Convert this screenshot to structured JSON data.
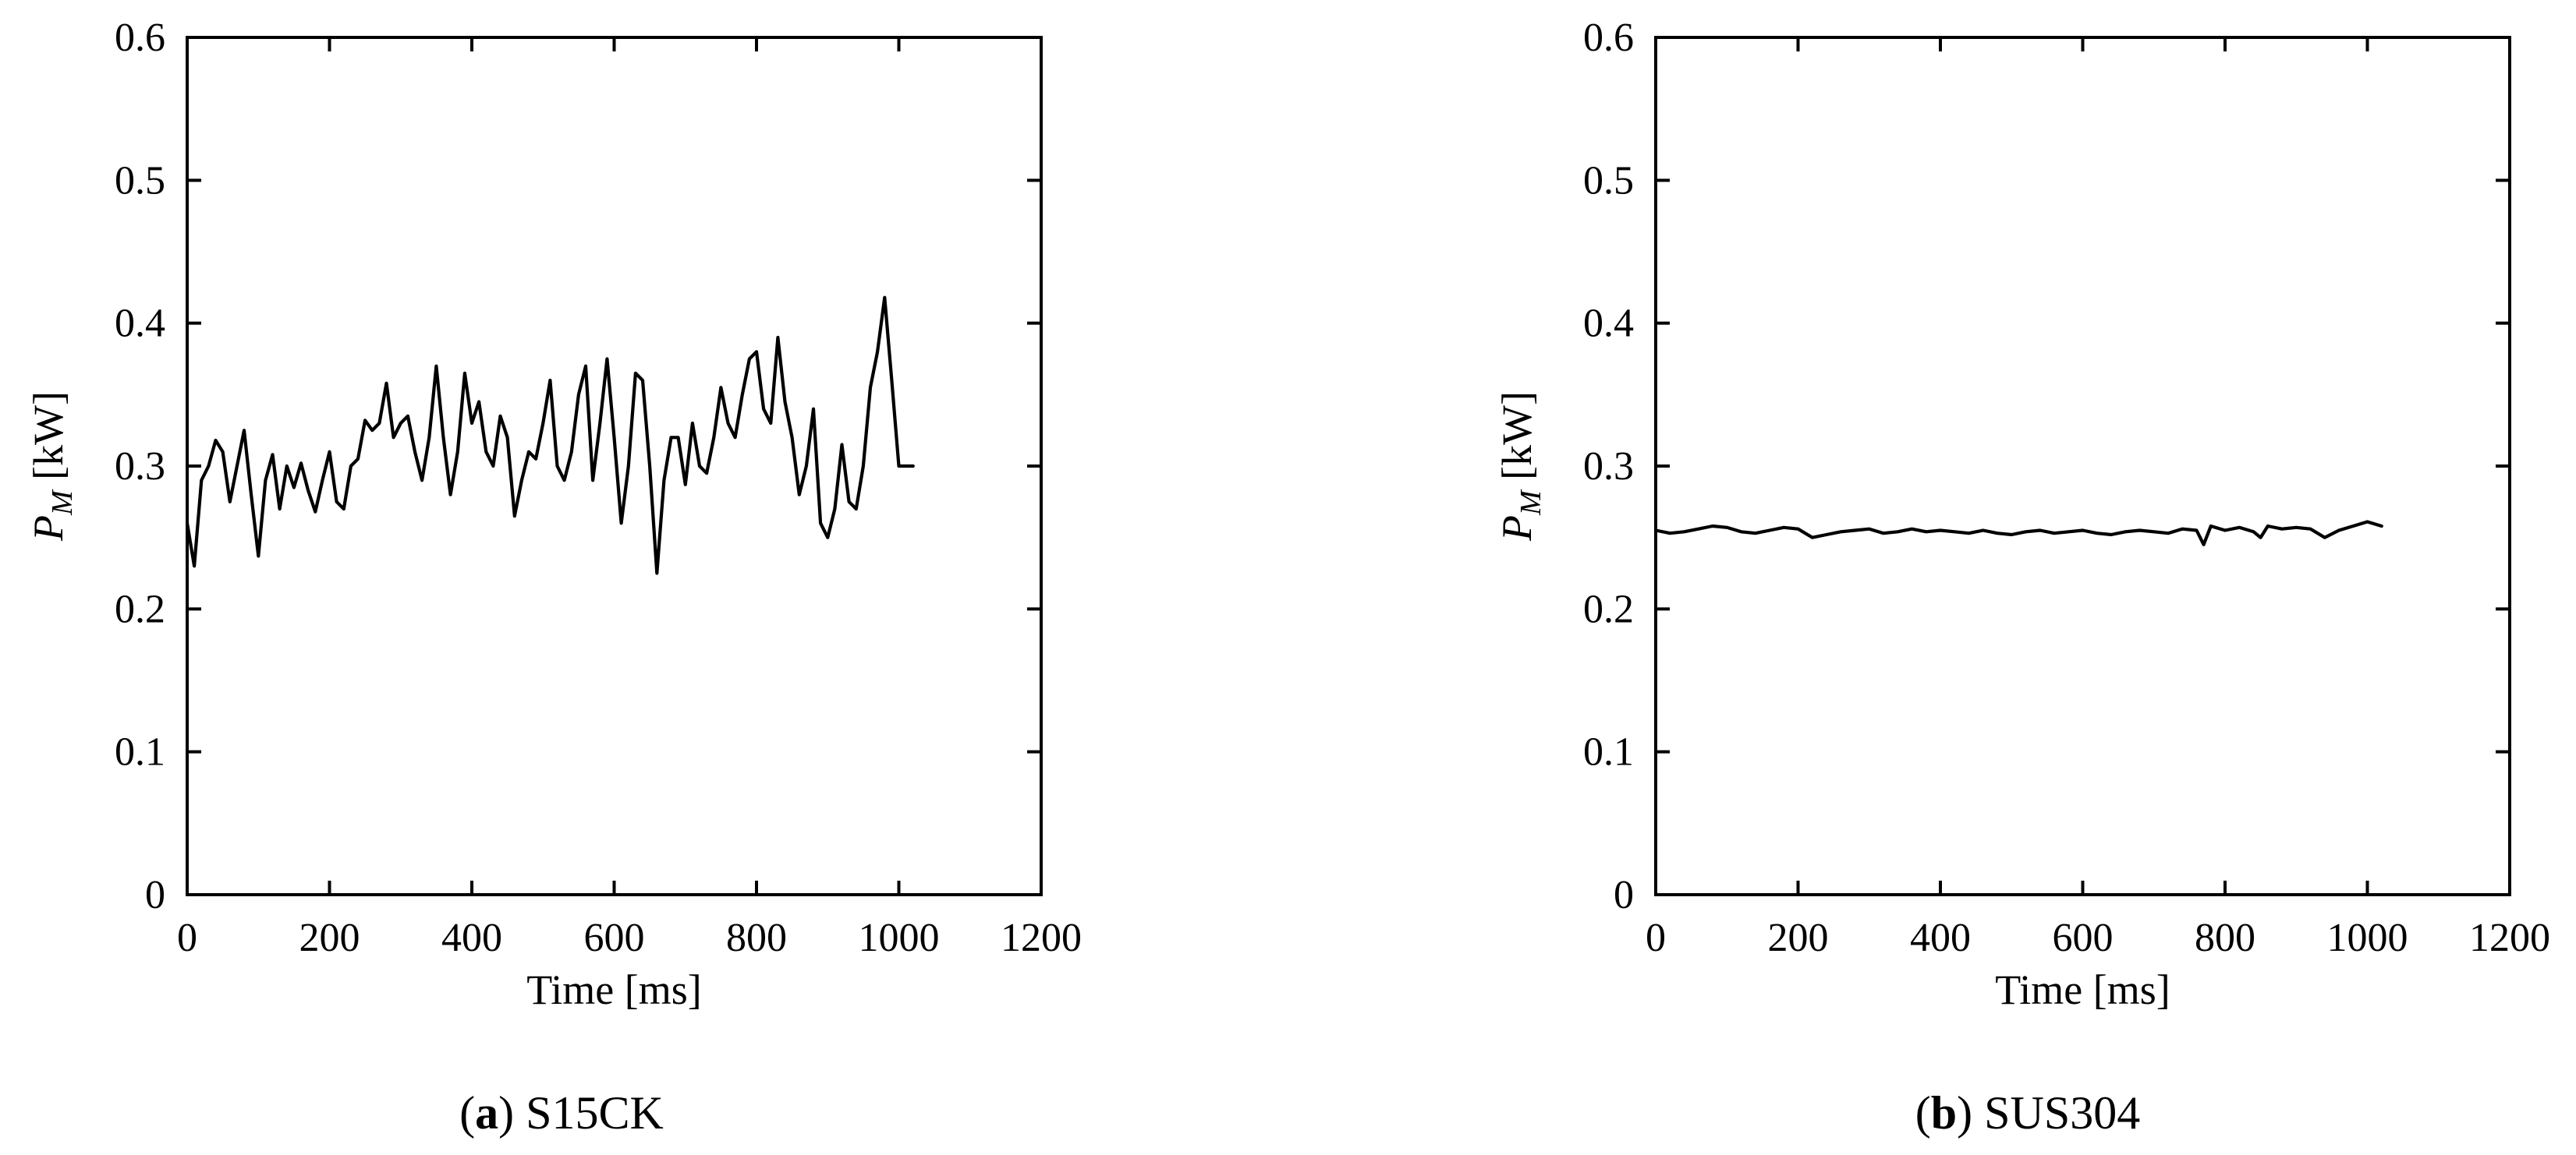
{
  "chart_data": [
    {
      "type": "line",
      "panel_letter": "a",
      "panel_title": "S15CK",
      "xlabel": "Time [ms]",
      "ylabel_symbol": "P",
      "ylabel_subscript": "M",
      "ylabel_unit": "[kW]",
      "xlim": [
        0,
        1200
      ],
      "ylim": [
        0,
        0.6
      ],
      "xticks": [
        0,
        200,
        400,
        600,
        800,
        1000,
        1200
      ],
      "yticks": [
        0,
        0.1,
        0.2,
        0.3,
        0.4,
        0.5,
        0.6
      ],
      "grid": false,
      "series": [
        {
          "x": [
            0,
            10,
            20,
            30,
            40,
            50,
            60,
            70,
            80,
            90,
            100,
            110,
            120,
            130,
            140,
            150,
            160,
            170,
            180,
            190,
            200,
            210,
            220,
            230,
            240,
            250,
            260,
            270,
            280,
            290,
            300,
            310,
            320,
            330,
            340,
            350,
            360,
            370,
            380,
            390,
            400,
            410,
            420,
            430,
            440,
            450,
            460,
            470,
            480,
            490,
            500,
            510,
            520,
            530,
            540,
            550,
            560,
            570,
            580,
            590,
            600,
            610,
            620,
            630,
            640,
            650,
            660,
            670,
            680,
            690,
            700,
            710,
            720,
            730,
            740,
            750,
            760,
            770,
            780,
            790,
            800,
            810,
            820,
            830,
            840,
            850,
            860,
            870,
            880,
            890,
            900,
            910,
            920,
            930,
            940,
            950,
            960,
            970,
            980,
            990,
            1000,
            1010,
            1020
          ],
          "y": [
            0.26,
            0.23,
            0.29,
            0.3,
            0.318,
            0.31,
            0.275,
            0.3,
            0.325,
            0.28,
            0.237,
            0.29,
            0.308,
            0.27,
            0.3,
            0.285,
            0.302,
            0.283,
            0.268,
            0.29,
            0.31,
            0.275,
            0.27,
            0.3,
            0.305,
            0.332,
            0.325,
            0.33,
            0.358,
            0.32,
            0.33,
            0.335,
            0.31,
            0.29,
            0.32,
            0.37,
            0.32,
            0.28,
            0.31,
            0.365,
            0.33,
            0.345,
            0.31,
            0.3,
            0.335,
            0.32,
            0.265,
            0.29,
            0.31,
            0.305,
            0.33,
            0.36,
            0.3,
            0.29,
            0.31,
            0.35,
            0.37,
            0.29,
            0.33,
            0.375,
            0.32,
            0.26,
            0.3,
            0.365,
            0.36,
            0.3,
            0.225,
            0.29,
            0.32,
            0.32,
            0.287,
            0.33,
            0.3,
            0.295,
            0.32,
            0.355,
            0.33,
            0.32,
            0.35,
            0.375,
            0.38,
            0.34,
            0.33,
            0.39,
            0.345,
            0.32,
            0.28,
            0.3,
            0.34,
            0.26,
            0.25,
            0.27,
            0.315,
            0.275,
            0.27,
            0.3,
            0.355,
            0.38,
            0.418,
            0.36,
            0.3,
            0.3,
            0.3
          ]
        }
      ]
    },
    {
      "type": "line",
      "panel_letter": "b",
      "panel_title": "SUS304",
      "xlabel": "Time [ms]",
      "ylabel_symbol": "P",
      "ylabel_subscript": "M",
      "ylabel_unit": "[kW]",
      "xlim": [
        0,
        1200
      ],
      "ylim": [
        0,
        0.6
      ],
      "xticks": [
        0,
        200,
        400,
        600,
        800,
        1000,
        1200
      ],
      "yticks": [
        0,
        0.1,
        0.2,
        0.3,
        0.4,
        0.5,
        0.6
      ],
      "grid": false,
      "series": [
        {
          "x": [
            0,
            20,
            40,
            60,
            80,
            100,
            120,
            140,
            160,
            180,
            200,
            220,
            240,
            260,
            280,
            300,
            320,
            340,
            360,
            380,
            400,
            420,
            440,
            460,
            480,
            500,
            520,
            540,
            560,
            580,
            600,
            620,
            640,
            660,
            680,
            700,
            720,
            740,
            760,
            770,
            780,
            800,
            820,
            840,
            850,
            860,
            880,
            900,
            920,
            940,
            960,
            980,
            1000,
            1020
          ],
          "y": [
            0.255,
            0.253,
            0.254,
            0.256,
            0.258,
            0.257,
            0.254,
            0.253,
            0.255,
            0.257,
            0.256,
            0.25,
            0.252,
            0.254,
            0.255,
            0.256,
            0.253,
            0.254,
            0.256,
            0.254,
            0.255,
            0.254,
            0.253,
            0.255,
            0.253,
            0.252,
            0.254,
            0.255,
            0.253,
            0.254,
            0.255,
            0.253,
            0.252,
            0.254,
            0.255,
            0.254,
            0.253,
            0.256,
            0.255,
            0.245,
            0.258,
            0.255,
            0.257,
            0.254,
            0.25,
            0.258,
            0.256,
            0.257,
            0.256,
            0.25,
            0.255,
            0.258,
            0.261,
            0.258
          ]
        }
      ]
    }
  ]
}
